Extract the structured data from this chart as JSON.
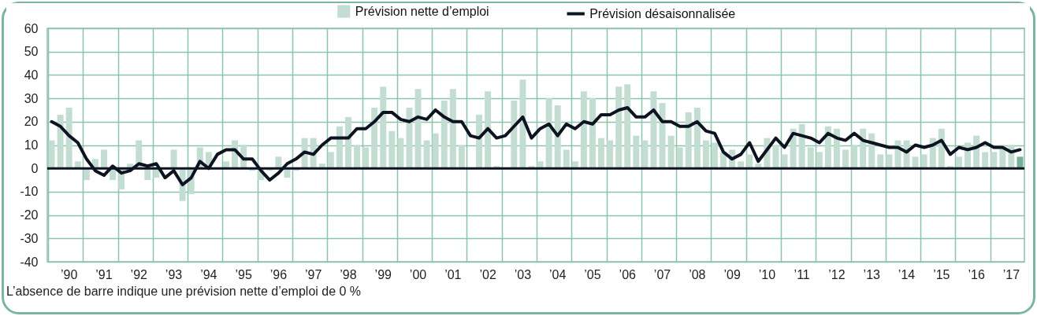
{
  "chart_data": {
    "type": "bar",
    "categories": [
      null,
      null,
      "’90",
      null,
      null,
      null,
      "’91",
      null,
      null,
      null,
      "’92",
      null,
      null,
      null,
      "’93",
      null,
      null,
      null,
      "’94",
      null,
      null,
      null,
      "’95",
      null,
      null,
      null,
      "’96",
      null,
      null,
      null,
      "’97",
      null,
      null,
      null,
      "’98",
      null,
      null,
      null,
      "’99",
      null,
      null,
      null,
      "’00",
      null,
      null,
      null,
      "’01",
      null,
      null,
      null,
      "’02",
      null,
      null,
      null,
      "’03",
      null,
      null,
      null,
      "’04",
      null,
      null,
      null,
      "’05",
      null,
      null,
      null,
      "’06",
      null,
      null,
      null,
      "’07",
      null,
      null,
      null,
      "’08",
      null,
      null,
      null,
      "’09",
      null,
      null,
      null,
      "’10",
      null,
      null,
      null,
      "’11",
      null,
      null,
      null,
      "’12",
      null,
      null,
      null,
      "’13",
      null,
      null,
      null,
      "’14",
      null,
      null,
      null,
      "’15",
      null,
      null,
      null,
      "’16",
      null,
      null,
      null,
      "’17",
      null
    ],
    "series": [
      {
        "name": "Prévision nette d’emploi",
        "color": "#c4ddd3",
        "colors": [
          "#c4ddd3",
          "#c4ddd3",
          "#c4ddd3",
          "#c4ddd3",
          "#c4ddd3",
          "#c4ddd3",
          "#c4ddd3",
          "#c4ddd3",
          "#c4ddd3",
          "#c4ddd3",
          "#c4ddd3",
          "#c4ddd3",
          "#c4ddd3",
          "#c4ddd3",
          "#c4ddd3",
          "#c4ddd3",
          "#c4ddd3",
          "#c4ddd3",
          "#c4ddd3",
          "#c4ddd3",
          "#c4ddd3",
          "#c4ddd3",
          "#c4ddd3",
          "#c4ddd3",
          "#c4ddd3",
          "#c4ddd3",
          "#c4ddd3",
          "#c4ddd3",
          "#c4ddd3",
          "#c4ddd3",
          "#c4ddd3",
          "#c4ddd3",
          "#c4ddd3",
          "#c4ddd3",
          "#c4ddd3",
          "#c4ddd3",
          "#c4ddd3",
          "#c4ddd3",
          "#c4ddd3",
          "#c4ddd3",
          "#c4ddd3",
          "#c4ddd3",
          "#c4ddd3",
          "#c4ddd3",
          "#c4ddd3",
          "#c4ddd3",
          "#c4ddd3",
          "#c4ddd3",
          "#c4ddd3",
          "#c4ddd3",
          "#c4ddd3",
          "#c4ddd3",
          "#c4ddd3",
          "#c4ddd3",
          "#c4ddd3",
          "#c4ddd3",
          "#c4ddd3",
          "#c4ddd3",
          "#c4ddd3",
          "#c4ddd3",
          "#c4ddd3",
          "#c4ddd3",
          "#c4ddd3",
          "#c4ddd3",
          "#c4ddd3",
          "#c4ddd3",
          "#c4ddd3",
          "#c4ddd3",
          "#c4ddd3",
          "#c4ddd3",
          "#c4ddd3",
          "#c4ddd3",
          "#c4ddd3",
          "#c4ddd3",
          "#c4ddd3",
          "#c4ddd3",
          "#c4ddd3",
          "#c4ddd3",
          "#c4ddd3",
          "#c4ddd3",
          "#c4ddd3",
          "#c4ddd3",
          "#c4ddd3",
          "#c4ddd3",
          "#c4ddd3",
          "#c4ddd3",
          "#c4ddd3",
          "#c4ddd3",
          "#c4ddd3",
          "#c4ddd3",
          "#c4ddd3",
          "#c4ddd3",
          "#c4ddd3",
          "#c4ddd3",
          "#c4ddd3",
          "#c4ddd3",
          "#c4ddd3",
          "#c4ddd3",
          "#c4ddd3",
          "#c4ddd3",
          "#c4ddd3",
          "#c4ddd3",
          "#c4ddd3",
          "#c4ddd3",
          "#c4ddd3",
          "#c4ddd3",
          "#c4ddd3",
          "#c4ddd3",
          "#c4ddd3",
          "#c4ddd3",
          "#c4ddd3",
          "#76ae97"
        ],
        "values": [
          12,
          23,
          26,
          3,
          -5,
          4,
          8,
          -5,
          -9,
          2,
          12,
          -5,
          -4,
          0,
          8,
          -14,
          -11,
          9,
          7,
          0,
          3,
          12,
          10,
          -1,
          -5,
          -1,
          5,
          -4,
          -1,
          13,
          13,
          2,
          7,
          18,
          22,
          10,
          9,
          26,
          35,
          16,
          13,
          26,
          34,
          12,
          15,
          29,
          34,
          10,
          0,
          23,
          33,
          1,
          0,
          29,
          38,
          1,
          3,
          30,
          27,
          8,
          3,
          33,
          30,
          13,
          12,
          35,
          36,
          14,
          12,
          33,
          28,
          14,
          9,
          24,
          26,
          12,
          11,
          7,
          8,
          3,
          6,
          2,
          13,
          10,
          6,
          17,
          19,
          9,
          7,
          18,
          17,
          8,
          10,
          17,
          15,
          6,
          6,
          12,
          12,
          5,
          6,
          13,
          17,
          1,
          5,
          11,
          14,
          7,
          7,
          10,
          10,
          5
        ]
      },
      {
        "type": "line",
        "name": "Prévision désaisonnalisée",
        "color": "#0d1321",
        "line_style": "solid",
        "values": [
          20,
          18,
          14,
          11,
          4,
          -1,
          -3,
          1,
          -2,
          -1,
          2,
          1,
          2,
          -4,
          -1,
          -7,
          -4,
          3,
          0,
          6,
          8,
          8,
          4,
          4,
          -1,
          -5,
          -2,
          2,
          4,
          7,
          6,
          10,
          13,
          13,
          13,
          17,
          17,
          20,
          24,
          24,
          21,
          20,
          22,
          21,
          25,
          22,
          20,
          20,
          14,
          13,
          17,
          13,
          14,
          18,
          22,
          13,
          17,
          19,
          14,
          19,
          17,
          20,
          19,
          23,
          23,
          25,
          26,
          22,
          22,
          25,
          20,
          20,
          18,
          18,
          20,
          16,
          15,
          7,
          4,
          6,
          11,
          3,
          8,
          13,
          9,
          15,
          14,
          13,
          11,
          15,
          13,
          12,
          15,
          12,
          11,
          10,
          9,
          9,
          7,
          10,
          9,
          10,
          12,
          6,
          9,
          8,
          9,
          11,
          9,
          9,
          7,
          8
        ]
      }
    ],
    "ylim": [
      -40,
      60
    ],
    "yticks": [
      -40,
      -30,
      -20,
      -10,
      0,
      10,
      20,
      30,
      40,
      50,
      60
    ],
    "grid": true,
    "legend": "top",
    "ref_lines": [
      {
        "axis": "y",
        "value": 0,
        "color": "#0d1321"
      }
    ],
    "annotations": [
      "L’absence de barre indique une prévision nette d’emploi de 0 %"
    ]
  }
}
